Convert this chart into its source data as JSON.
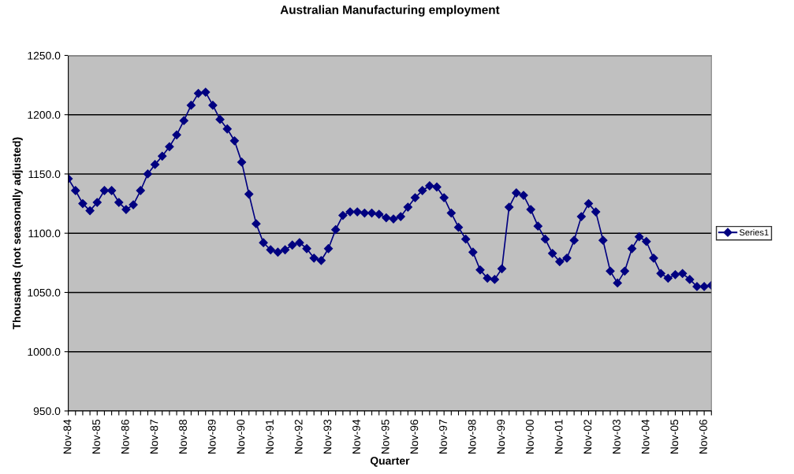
{
  "chart_data": {
    "type": "line",
    "title": "Australian Manufacturing employment",
    "xlabel": "Quarter",
    "ylabel": "Thousands (not seasonally adjusted)",
    "categories": [
      "Nov-84",
      null,
      null,
      null,
      "Nov-85",
      null,
      null,
      null,
      "Nov-86",
      null,
      null,
      null,
      "Nov-87",
      null,
      null,
      null,
      "Nov-88",
      null,
      null,
      null,
      "Nov-89",
      null,
      null,
      null,
      "Nov-90",
      null,
      null,
      null,
      "Nov-91",
      null,
      null,
      null,
      "Nov-92",
      null,
      null,
      null,
      "Nov-93",
      null,
      null,
      null,
      "Nov-94",
      null,
      null,
      null,
      "Nov-95",
      null,
      null,
      null,
      "Nov-96",
      null,
      null,
      null,
      "Nov-97",
      null,
      null,
      null,
      "Nov-98",
      null,
      null,
      null,
      "Nov-99",
      null,
      null,
      null,
      "Nov-00",
      null,
      null,
      null,
      "Nov-01",
      null,
      null,
      null,
      "Nov-02",
      null,
      null,
      null,
      "Nov-03",
      null,
      null,
      null,
      "Nov-04",
      null,
      null,
      null,
      "Nov-05",
      null,
      null,
      null,
      "Nov-06",
      null
    ],
    "series": [
      {
        "name": "Series1",
        "color": "#000080",
        "values": [
          1146,
          1136,
          1125,
          1119,
          1126,
          1136,
          1136,
          1126,
          1120,
          1124,
          1136,
          1150,
          1158,
          1165,
          1173,
          1183,
          1195,
          1208,
          1218,
          1219,
          1208,
          1196,
          1188,
          1178,
          1160,
          1133,
          1108,
          1092,
          1086,
          1084,
          1086,
          1090,
          1092,
          1087,
          1079,
          1077,
          1087,
          1103,
          1115,
          1118,
          1118,
          1117,
          1117,
          1116,
          1113,
          1112,
          1114,
          1122,
          1130,
          1136,
          1140,
          1139,
          1130,
          1117,
          1105,
          1095,
          1084,
          1069,
          1062,
          1061,
          1070,
          1122,
          1134,
          1132,
          1120,
          1106,
          1095,
          1083,
          1076,
          1079,
          1094,
          1114,
          1125,
          1118,
          1094,
          1068,
          1058,
          1068,
          1087,
          1097,
          1093,
          1079,
          1066,
          1062,
          1065,
          1066,
          1061,
          1055,
          1055,
          1056
        ]
      }
    ],
    "ylim": [
      950,
      1250
    ],
    "yticks": [
      {
        "value": 950,
        "label": "950.0"
      },
      {
        "value": 1000,
        "label": "1000.0"
      },
      {
        "value": 1050,
        "label": "1050.0"
      },
      {
        "value": 1100,
        "label": "1100.0"
      },
      {
        "value": 1150,
        "label": "1150.0"
      },
      {
        "value": 1200,
        "label": "1200.0"
      },
      {
        "value": 1250,
        "label": "1250.0"
      }
    ],
    "grid": "y",
    "legend": "right",
    "marker": "diamond",
    "line_style": "solid"
  }
}
